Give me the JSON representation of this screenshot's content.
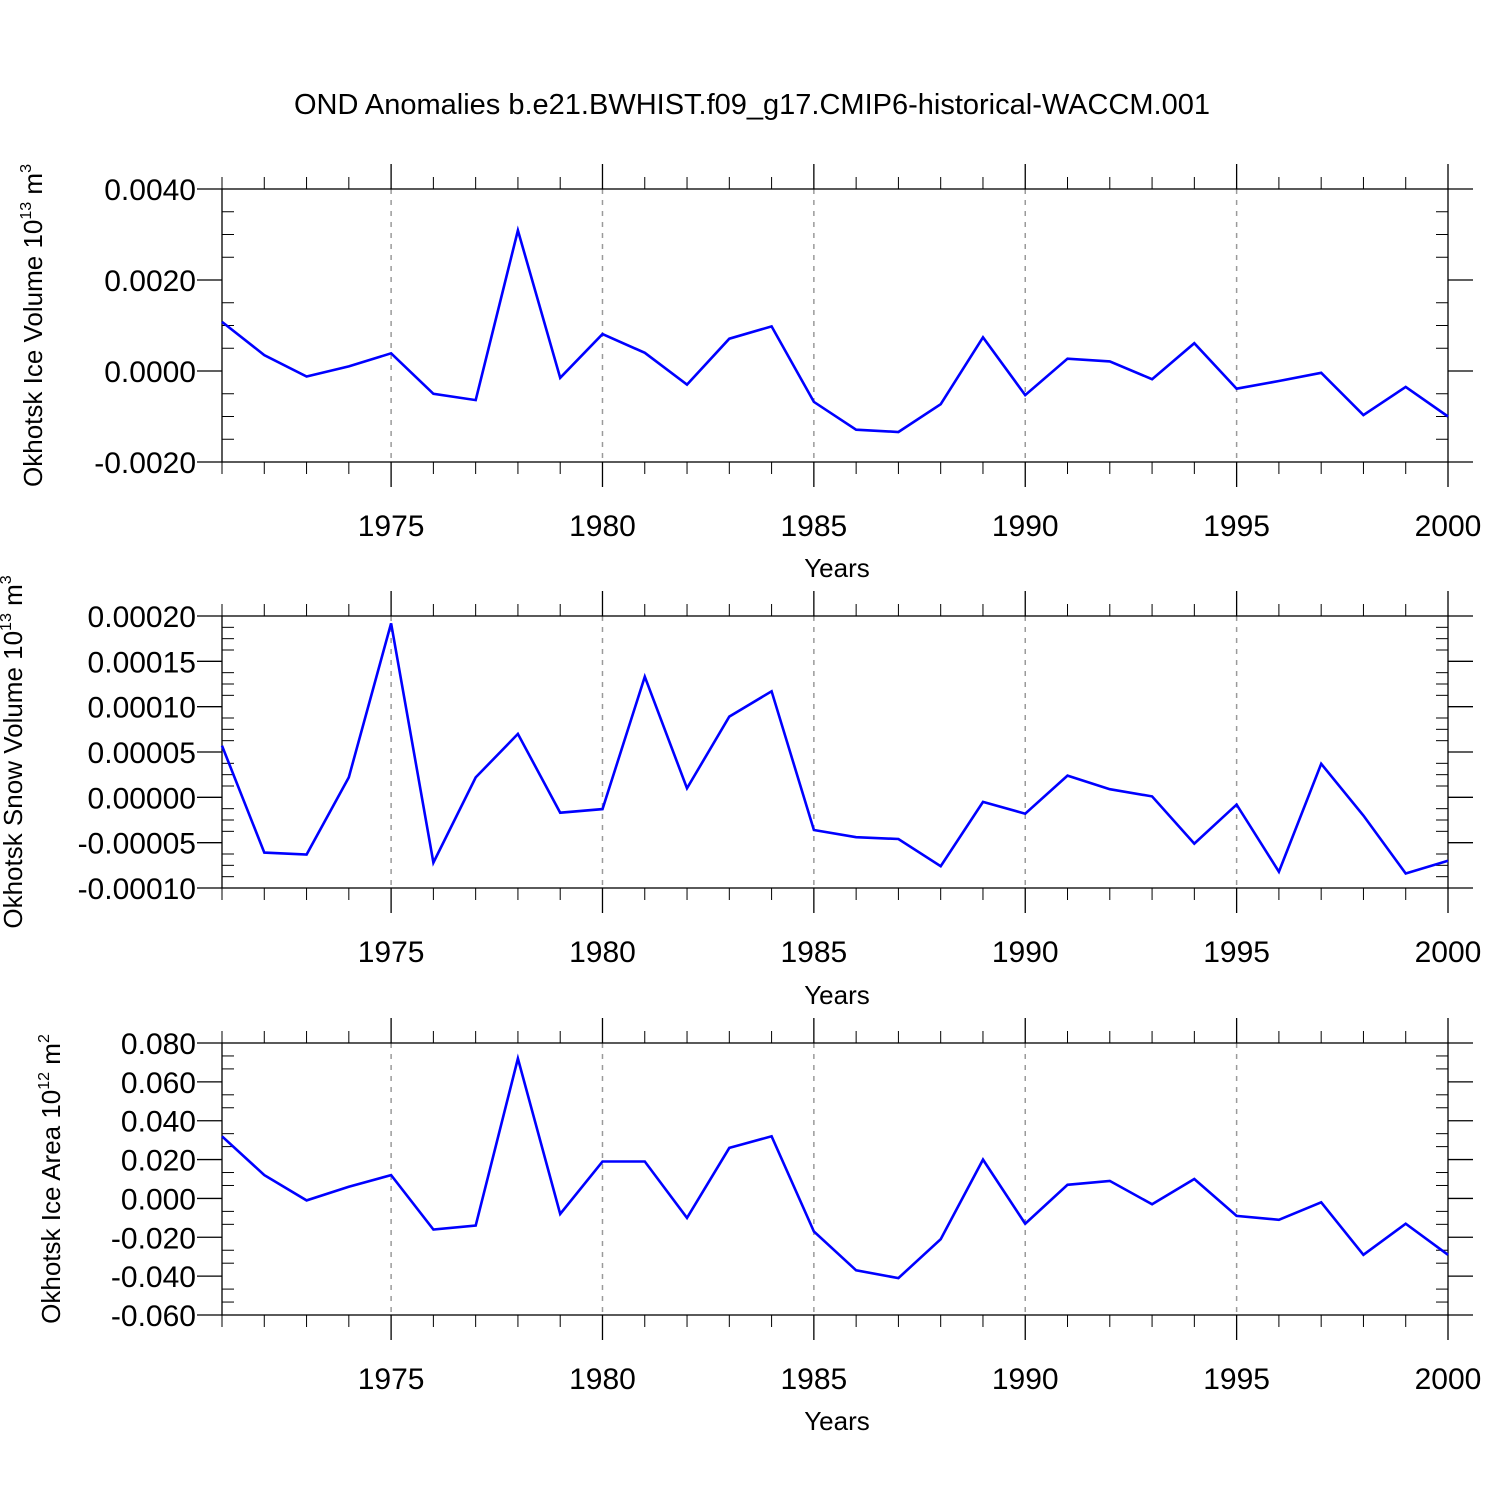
{
  "figure": {
    "title": "OND Anomalies b.e21.BWHIST.f09_g17.CMIP6-historical-WACCM.001",
    "line_color": "#0000ff",
    "gridline_color": "#9a9a9a"
  },
  "chart_data": [
    {
      "type": "line",
      "title": "",
      "xlabel": "Years",
      "ylabel": "Okhotsk Ice Volume 10",
      "ylabel_exp": "13",
      "ylabel_unit": " m",
      "ylabel_unit_exp": "3",
      "xlim": [
        1971,
        2000
      ],
      "ylim": [
        -0.002,
        0.004
      ],
      "x_ticks": [
        1975,
        1980,
        1985,
        1990,
        1995,
        2000
      ],
      "x_tick_labels": [
        "1975",
        "1980",
        "1985",
        "1990",
        "1995",
        "2000"
      ],
      "y_ticks": [
        -0.002,
        0.0,
        0.002,
        0.004
      ],
      "y_tick_labels": [
        "-0.0020",
        "0.0000",
        "0.0020",
        "0.0040"
      ],
      "grid": "vertical dashed at major x ticks",
      "series": [
        {
          "x": [
            1971,
            1972,
            1973,
            1974,
            1975,
            1976,
            1977,
            1978,
            1979,
            1980,
            1981,
            1982,
            1983,
            1984,
            1985,
            1986,
            1987,
            1988,
            1989,
            1990,
            1991,
            1992,
            1993,
            1994,
            1995,
            1996,
            1997,
            1998,
            1999,
            2000
          ],
          "values": [
            0.00108,
            0.00035,
            -0.00012,
            0.0001,
            0.00039,
            -0.0005,
            -0.00064,
            0.00309,
            -0.00015,
            0.00081,
            0.0004,
            -0.0003,
            0.00071,
            0.00098,
            -0.00068,
            -0.00129,
            -0.00134,
            -0.00073,
            0.00074,
            -0.00053,
            0.00027,
            0.00021,
            -0.00018,
            0.00061,
            -0.00039,
            -0.00022,
            -4e-05,
            -0.00097,
            -0.00035,
            -0.001
          ]
        }
      ]
    },
    {
      "type": "line",
      "title": "",
      "xlabel": "Years",
      "ylabel": "Okhotsk Snow Volume 10",
      "ylabel_exp": "13",
      "ylabel_unit": " m",
      "ylabel_unit_exp": "3",
      "xlim": [
        1971,
        2000
      ],
      "ylim": [
        -0.0001,
        0.0002
      ],
      "x_ticks": [
        1975,
        1980,
        1985,
        1990,
        1995,
        2000
      ],
      "x_tick_labels": [
        "1975",
        "1980",
        "1985",
        "1990",
        "1995",
        "2000"
      ],
      "y_ticks": [
        -0.0001,
        -5e-05,
        0.0,
        5e-05,
        0.0001,
        0.00015,
        0.0002
      ],
      "y_tick_labels": [
        "-0.00010",
        "-0.00005",
        "0.00000",
        "0.00005",
        "0.00010",
        "0.00015",
        "0.00020"
      ],
      "grid": "vertical dashed at major x ticks",
      "series": [
        {
          "x": [
            1971,
            1972,
            1973,
            1974,
            1975,
            1976,
            1977,
            1978,
            1979,
            1980,
            1981,
            1982,
            1983,
            1984,
            1985,
            1986,
            1987,
            1988,
            1989,
            1990,
            1991,
            1992,
            1993,
            1994,
            1995,
            1996,
            1997,
            1998,
            1999,
            2000
          ],
          "values": [
            5.7e-05,
            -6.1e-05,
            -6.3e-05,
            2.2e-05,
            0.000192,
            -7.2e-05,
            2.2e-05,
            7e-05,
            -1.7e-05,
            -1.3e-05,
            0.000133,
            1e-05,
            8.9e-05,
            0.000117,
            -3.6e-05,
            -4.4e-05,
            -4.6e-05,
            -7.6e-05,
            -5e-06,
            -1.8e-05,
            2.4e-05,
            9e-06,
            1e-06,
            -5.1e-05,
            -8e-06,
            -8.2e-05,
            3.7e-05,
            -2e-05,
            -8.4e-05,
            -7e-05
          ]
        }
      ]
    },
    {
      "type": "line",
      "title": "",
      "xlabel": "Years",
      "ylabel": "Okhotsk Ice Area 10",
      "ylabel_exp": "12",
      "ylabel_unit": " m",
      "ylabel_unit_exp": "2",
      "xlim": [
        1971,
        2000
      ],
      "ylim": [
        -0.06,
        0.08
      ],
      "x_ticks": [
        1975,
        1980,
        1985,
        1990,
        1995,
        2000
      ],
      "x_tick_labels": [
        "1975",
        "1980",
        "1985",
        "1990",
        "1995",
        "2000"
      ],
      "y_ticks": [
        -0.06,
        -0.04,
        -0.02,
        0.0,
        0.02,
        0.04,
        0.06,
        0.08
      ],
      "y_tick_labels": [
        "-0.060",
        "-0.040",
        "-0.020",
        "0.000",
        "0.020",
        "0.040",
        "0.060",
        "0.080"
      ],
      "grid": "vertical dashed at major x ticks",
      "series": [
        {
          "x": [
            1971,
            1972,
            1973,
            1974,
            1975,
            1976,
            1977,
            1978,
            1979,
            1980,
            1981,
            1982,
            1983,
            1984,
            1985,
            1986,
            1987,
            1988,
            1989,
            1990,
            1991,
            1992,
            1993,
            1994,
            1995,
            1996,
            1997,
            1998,
            1999,
            2000
          ],
          "values": [
            0.032,
            0.012,
            -0.001,
            0.006,
            0.012,
            -0.016,
            -0.014,
            0.072,
            -0.008,
            0.019,
            0.019,
            -0.01,
            0.026,
            0.032,
            -0.017,
            -0.037,
            -0.041,
            -0.021,
            0.02,
            -0.013,
            0.007,
            0.009,
            -0.003,
            0.01,
            -0.009,
            -0.011,
            -0.002,
            -0.029,
            -0.013,
            -0.029
          ]
        }
      ]
    }
  ]
}
